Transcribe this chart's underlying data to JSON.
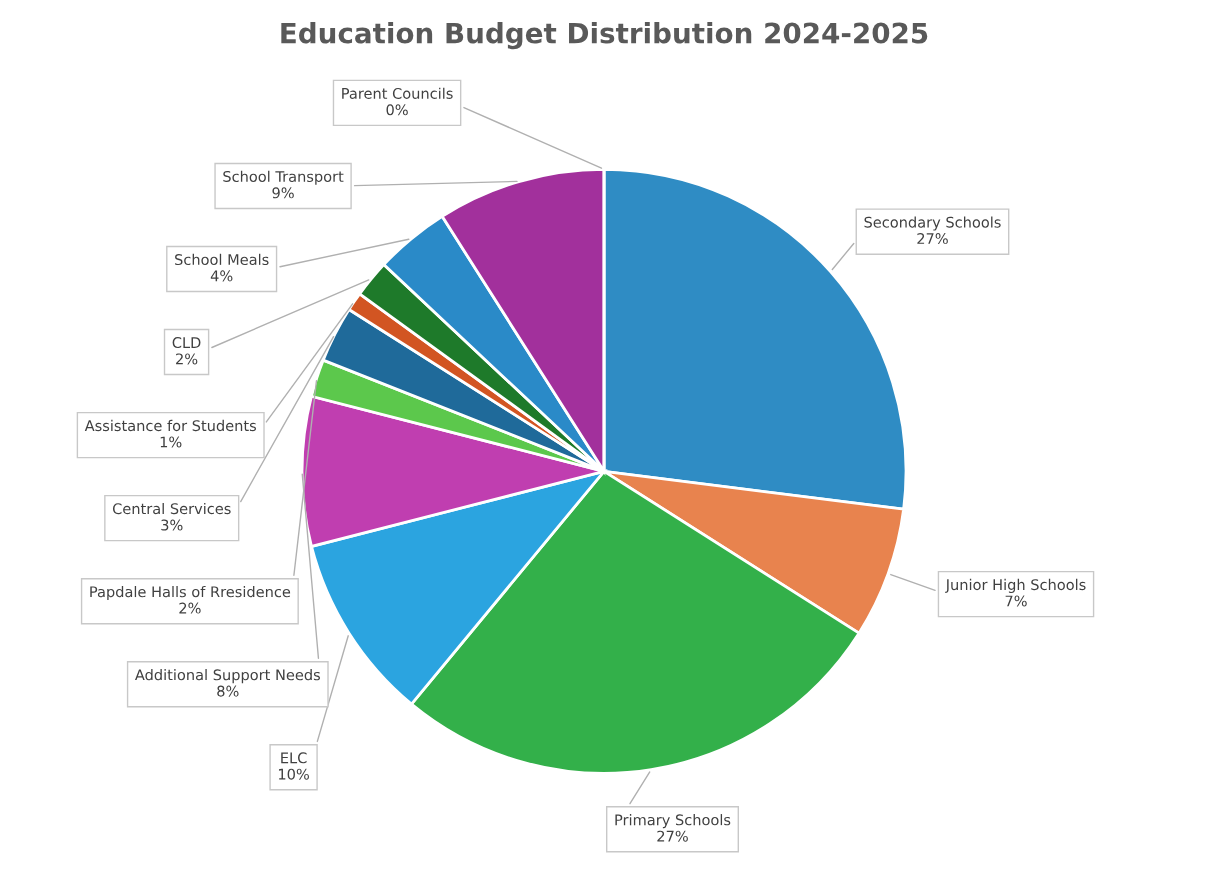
{
  "chart_data": {
    "type": "pie",
    "title": "Education Budget Distribution 2024-2025",
    "categories": [
      "Secondary Schools",
      "Junior High Schools",
      "Primary Schools",
      "ELC",
      "Additional Support Needs",
      "Papdale Halls of Rresidence",
      "Central Services",
      "Assistance for Students",
      "CLD",
      "School Meals",
      "School Transport",
      "Parent Councils"
    ],
    "values": [
      27,
      7,
      27,
      10,
      8,
      2,
      3,
      1,
      2,
      4,
      9,
      0
    ],
    "colors": [
      "#2f8cc4",
      "#e8834e",
      "#33b04a",
      "#2ba4e0",
      "#c03eb0",
      "#5cc84c",
      "#1f6a9a",
      "#d25522",
      "#1e7a2a",
      "#2a8ac8",
      "#a2309c",
      "#c040b0"
    ],
    "value_labels": [
      "27%",
      "7%",
      "27%",
      "10%",
      "8%",
      "2%",
      "3%",
      "1%",
      "2%",
      "4%",
      "9%",
      "0%"
    ]
  }
}
